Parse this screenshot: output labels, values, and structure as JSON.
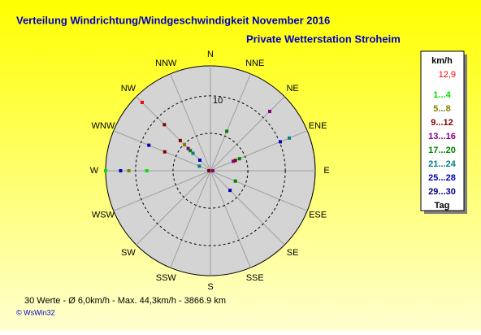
{
  "chart_data": {
    "type": "polar-scatter",
    "title": "Verteilung Windrichtung/Windgeschwindigkeit  November 2016",
    "subtitle": "Private Wetterstation Stroheim",
    "directions": [
      "N",
      "NNE",
      "NE",
      "ENE",
      "E",
      "ESE",
      "SE",
      "SSE",
      "S",
      "SSW",
      "SW",
      "WSW",
      "W",
      "WNW",
      "NW",
      "NNW"
    ],
    "rlim": [
      0,
      14
    ],
    "rgrid": [
      5,
      10
    ],
    "rticks": [
      10
    ],
    "legend_title": "km/h",
    "series": [
      {
        "name": "12,9",
        "color": "#ff0000",
        "directions": [
          "NW"
        ],
        "values": [
          12.9
        ]
      },
      {
        "name": "1...4",
        "color": "#00e000",
        "directions": [
          "W",
          "W"
        ],
        "values": [
          14,
          8.5
        ]
      },
      {
        "name": "5...8",
        "color": "#808000",
        "directions": [
          "W",
          "NW"
        ],
        "values": [
          10.9,
          4.9
        ]
      },
      {
        "name": "9...12",
        "color": "#800000",
        "directions": [
          "NW",
          "NW",
          "WNW",
          "ENE",
          "W"
        ],
        "values": [
          8.7,
          5.7,
          6.6,
          3.6,
          0.2
        ]
      },
      {
        "name": "13...16",
        "color": "#800080",
        "directions": [
          "NE",
          "NW",
          "ENE",
          "E"
        ],
        "values": [
          11.2,
          4.2,
          3.3,
          0.3
        ]
      },
      {
        "name": "17...20",
        "color": "#008000",
        "directions": [
          "NNE",
          "NW",
          "ESE",
          "ENE"
        ],
        "values": [
          5.7,
          3.8,
          3.6,
          4.2
        ]
      },
      {
        "name": "21...24",
        "color": "#008080",
        "directions": [
          "ENE",
          "NW",
          "WNW"
        ],
        "values": [
          11.4,
          3.3,
          1.6
        ]
      },
      {
        "name": "25...28",
        "color": "#0000c0",
        "directions": [
          "ENE",
          "WNW",
          "W",
          "SE",
          "NW"
        ],
        "values": [
          10.1,
          8.9,
          12.0,
          3.7,
          2.0
        ]
      },
      {
        "name": "29...30",
        "color": "#000080",
        "directions": [],
        "values": []
      },
      {
        "name": "Tag",
        "color": "#000000",
        "directions": [],
        "values": []
      }
    ],
    "footer": "30 Werte   -   Ø 6,0km/h  -  Max. 44,3km/h  -   3866.9 km",
    "credit": "© WsWin32"
  }
}
